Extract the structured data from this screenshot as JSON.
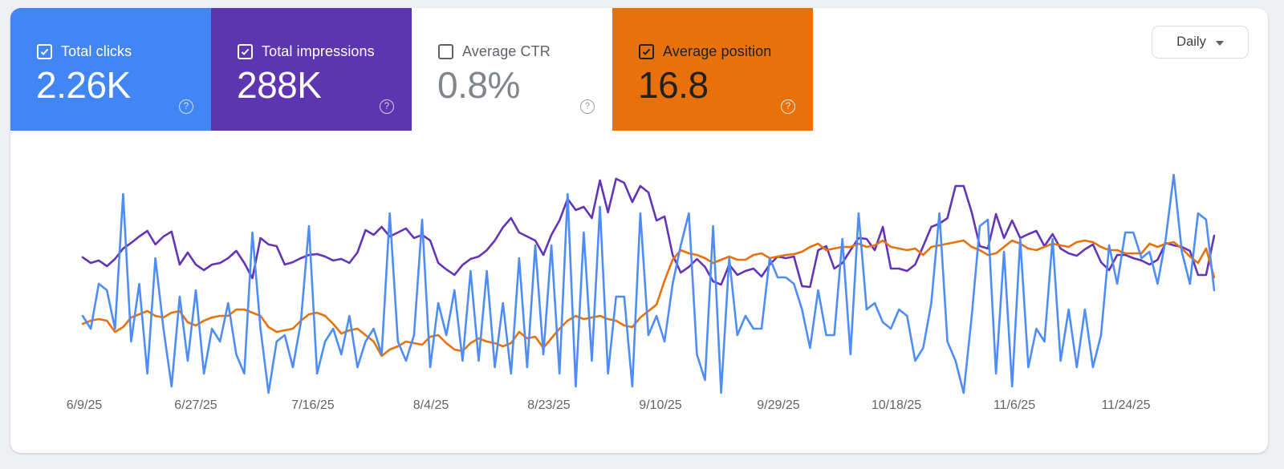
{
  "header": {
    "cards": [
      {
        "label": "Total clicks",
        "value": "2.26K",
        "checked": true,
        "bg": "#4285f4",
        "text_color": "#ffffff",
        "value_color": "#ffffff",
        "help_color": "rgba(255,255,255,0.75)"
      },
      {
        "label": "Total impressions",
        "value": "288K",
        "checked": true,
        "bg": "#5e35b1",
        "text_color": "#ffffff",
        "value_color": "#ffffff",
        "help_color": "rgba(255,255,255,0.75)"
      },
      {
        "label": "Average CTR",
        "value": "0.8%",
        "checked": false,
        "bg": "#ffffff",
        "text_color": "#5f6368",
        "value_color": "#80868b",
        "help_color": "#9aa0a6"
      },
      {
        "label": "Average position",
        "value": "16.8",
        "checked": true,
        "bg": "#e8710a",
        "text_color": "#202124",
        "value_color": "#202124",
        "help_color": "rgba(255,255,255,0.85)"
      }
    ],
    "granularity": {
      "label": "Daily"
    }
  },
  "icons": {
    "help": "?"
  },
  "chart_data": {
    "type": "line",
    "title": "",
    "xlabel": "",
    "ylabel": "",
    "grid": false,
    "legend": "none (cards act as legend)",
    "x_unit": "day",
    "x_start": "6/9/25",
    "x_end": "12/8/25",
    "x_tick_labels": [
      "6/9/25",
      "6/27/25",
      "7/16/25",
      "8/4/25",
      "8/23/25",
      "9/10/25",
      "9/29/25",
      "10/18/25",
      "11/6/25",
      "11/24/25"
    ],
    "series": [
      {
        "name": "Total clicks",
        "color": "#4e8df7",
        "axis_range": [
          0,
          34
        ],
        "values": [
          12,
          10,
          17,
          16,
          10,
          31,
          8,
          17,
          3,
          21,
          10,
          1,
          15,
          5,
          16,
          3,
          10,
          8,
          14,
          6,
          3,
          25,
          10,
          0,
          8,
          9,
          4,
          11,
          26,
          3,
          8,
          10,
          6,
          12,
          4,
          8,
          10,
          6,
          28,
          8,
          5,
          9,
          27,
          4,
          14,
          9,
          16,
          5,
          19,
          5,
          19,
          4,
          14,
          3,
          21,
          4,
          23,
          6,
          23,
          3,
          31,
          1,
          25,
          5,
          29,
          3,
          15,
          15,
          1,
          28,
          9,
          12,
          8,
          17,
          23,
          28,
          6,
          2,
          26,
          0,
          21,
          9,
          12,
          10,
          10,
          21,
          18,
          18,
          17,
          13,
          7,
          16,
          9,
          9,
          24,
          6,
          28,
          13,
          14,
          11,
          10,
          13,
          12,
          5,
          7,
          14,
          28,
          8,
          5,
          0,
          12,
          26,
          27,
          3,
          22,
          1,
          24,
          4,
          10,
          8,
          24,
          5,
          13,
          4,
          13,
          4,
          9,
          23,
          17,
          25,
          25,
          21,
          22,
          17,
          24,
          34,
          22,
          17,
          28,
          27,
          16
        ]
      },
      {
        "name": "Total impressions",
        "color": "#6334b8",
        "axis_range": [
          700,
          2800
        ],
        "values": [
          1873,
          1811,
          1838,
          1776,
          1855,
          1969,
          2030,
          2100,
          2161,
          2013,
          2100,
          2153,
          1794,
          1925,
          1794,
          1733,
          1794,
          1811,
          1864,
          1943,
          1811,
          1645,
          2083,
          2013,
          1995,
          1794,
          1820,
          1864,
          1899,
          1908,
          1881,
          1838,
          1855,
          1811,
          1925,
          2170,
          2118,
          2205,
          2100,
          2144,
          2188,
          2083,
          2118,
          2056,
          1811,
          1740,
          1681,
          1790,
          1855,
          1881,
          1950,
          2056,
          2200,
          2301,
          2144,
          2100,
          2056,
          1899,
          2118,
          2275,
          2511,
          2389,
          2424,
          2301,
          2713,
          2363,
          2730,
          2686,
          2476,
          2651,
          2581,
          2275,
          2319,
          1899,
          1706,
          1768,
          1855,
          1768,
          1610,
          1575,
          1794,
          1681,
          1724,
          1750,
          1663,
          1794,
          1881,
          1864,
          1881,
          1558,
          1549,
          1950,
          1995,
          1750,
          1811,
          1951,
          2083,
          2074,
          1951,
          2205,
          1750,
          1750,
          1724,
          1794,
          1995,
          2205,
          2240,
          2301,
          2651,
          2651,
          2363,
          1995,
          1969,
          2345,
          2083,
          2275,
          2083,
          2126,
          2161,
          1995,
          2126,
          1969,
          1916,
          1890,
          1960,
          2013,
          1820,
          1733,
          1899,
          1899,
          1864,
          1838,
          1794,
          1846,
          2030,
          2004,
          1986,
          1943,
          1680,
          1680,
          2109
        ]
      },
      {
        "name": "Average position",
        "color": "#e8710a",
        "axis_range": [
          11,
          23
        ],
        "inverted_axis": true,
        "values": [
          18.7,
          18.5,
          18.4,
          18.5,
          19.2,
          18.9,
          18.3,
          18.1,
          17.9,
          18.2,
          18.3,
          18.0,
          17.9,
          18.6,
          18.8,
          18.5,
          18.3,
          18.2,
          18.2,
          17.8,
          17.8,
          18.0,
          18.2,
          18.9,
          19.2,
          19.1,
          19.0,
          18.5,
          18.1,
          18.0,
          18.2,
          18.7,
          19.3,
          19.1,
          19.0,
          19.4,
          19.8,
          20.7,
          20.3,
          20.1,
          19.8,
          19.9,
          20.0,
          19.5,
          19.4,
          19.9,
          20.3,
          20.4,
          19.9,
          19.6,
          19.8,
          19.9,
          20.1,
          19.9,
          19.2,
          19.6,
          19.5,
          20.2,
          19.6,
          19.0,
          18.5,
          18.2,
          18.4,
          18.3,
          18.2,
          18.4,
          18.5,
          18.8,
          18.9,
          18.3,
          17.9,
          17.5,
          16.0,
          14.7,
          14.1,
          14.3,
          14.4,
          14.6,
          14.9,
          14.7,
          14.5,
          14.7,
          14.7,
          14.4,
          14.3,
          14.6,
          14.5,
          14.4,
          14.35,
          14.2,
          13.9,
          13.7,
          14.1,
          14.0,
          13.9,
          13.9,
          13.7,
          13.9,
          13.8,
          13.5,
          13.9,
          14.0,
          14.1,
          14.0,
          14.4,
          13.9,
          13.8,
          13.7,
          13.6,
          13.5,
          13.9,
          14.1,
          14.4,
          14.3,
          13.9,
          13.5,
          13.7,
          14.0,
          14.1,
          13.9,
          13.7,
          13.8,
          13.9,
          13.6,
          13.5,
          13.6,
          13.9,
          14.1,
          14.1,
          14.3,
          14.3,
          14.3,
          13.7,
          13.9,
          13.7,
          13.6,
          14.0,
          14.5,
          14.9,
          14.0,
          15.8
        ]
      }
    ]
  }
}
